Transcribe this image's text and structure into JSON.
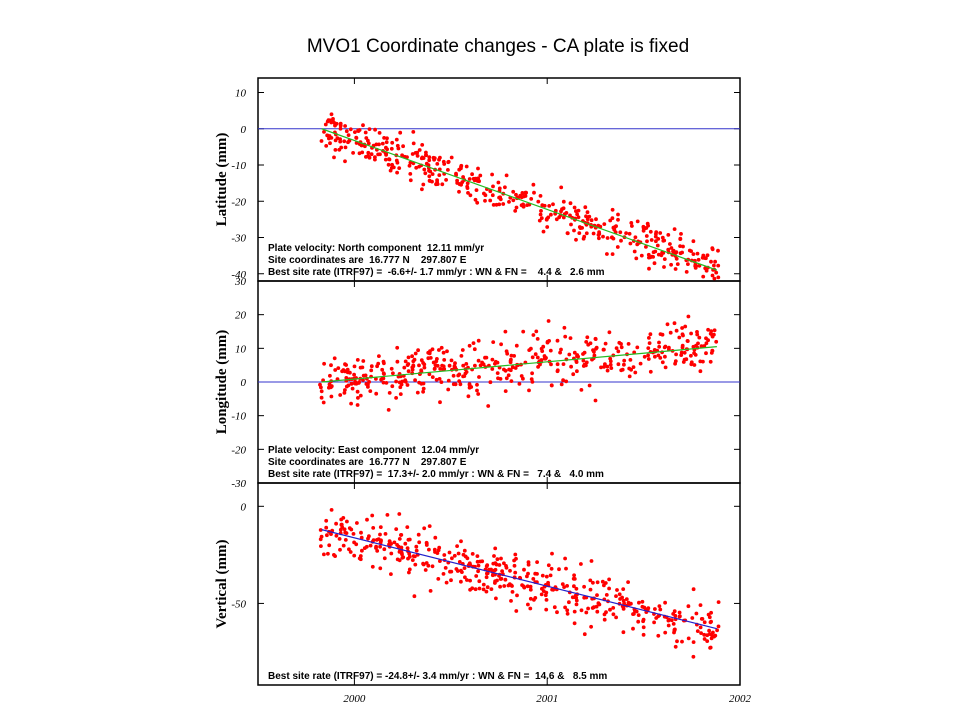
{
  "title": "MVO1 Coordinate changes - CA plate is fixed",
  "colors": {
    "points": "#ff0000",
    "zero_line": "#3333cc",
    "trend_green": "#22bb22",
    "trend_blue": "#2222cc",
    "frame": "#000000"
  },
  "x_axis": {
    "range": [
      1999.5,
      2002.0
    ],
    "tick_labels": [
      "2000",
      "2001",
      "2002"
    ],
    "ticks": [
      2000,
      2001,
      2002
    ]
  },
  "chart_data": [
    {
      "type": "scatter",
      "id": "latitude",
      "ylabel": "Latitude (mm)",
      "ylim": [
        -42,
        14
      ],
      "y_ticks": [
        10,
        0,
        -10,
        -20,
        -30,
        -40
      ],
      "y_tick_labels": [
        "10",
        "0",
        "-10",
        "-20",
        "-30",
        "-40"
      ],
      "zero_line": true,
      "trend": {
        "x": [
          1999.83,
          2001.88
        ],
        "y": [
          0,
          -39
        ],
        "color": "green"
      },
      "noise": 5,
      "n_points": 470,
      "x_span": [
        1999.82,
        2001.89
      ],
      "annotations": [
        "Plate velocity: North component  12.11 mm/yr",
        "Site coordinates are  16.777 N    297.807 E",
        "Best site rate (ITRF97) =  -6.6+/- 1.7 mm/yr : WN & FN =    4.4 &   2.6 mm"
      ]
    },
    {
      "type": "scatter",
      "id": "longitude",
      "ylabel": "Longitude (mm)",
      "ylim": [
        -30,
        30
      ],
      "y_ticks": [
        30,
        20,
        10,
        0,
        -10,
        -20,
        -30
      ],
      "y_tick_labels": [
        "30",
        "20",
        "10",
        "0",
        "-10",
        "-20",
        "-30"
      ],
      "zero_line": true,
      "trend": {
        "x": [
          1999.83,
          2001.88
        ],
        "y": [
          0,
          10.5
        ],
        "color": "green"
      },
      "noise": 7,
      "n_points": 470,
      "x_span": [
        1999.82,
        2001.89
      ],
      "annotations": [
        "Plate velocity: East component  12.04 mm/yr",
        "Site coordinates are  16.777 N    297.807 E",
        "Best site rate (ITRF97) =  17.3+/- 2.0 mm/yr : WN & FN =   7.4 &   4.0 mm"
      ]
    },
    {
      "type": "scatter",
      "id": "vertical",
      "ylabel": "Vertical (mm)",
      "ylim": [
        -92,
        12
      ],
      "y_ticks": [
        0,
        -50
      ],
      "y_tick_labels": [
        "0",
        "-50"
      ],
      "zero_line": false,
      "trend": {
        "x": [
          1999.83,
          2001.88
        ],
        "y": [
          -12,
          -63
        ],
        "color": "blue"
      },
      "noise": 12,
      "n_points": 470,
      "x_span": [
        1999.82,
        2001.89
      ],
      "annotations": [
        "Best site rate (ITRF97) = -24.8+/- 3.4 mm/yr : WN & FN =  14.6 &   8.5 mm"
      ]
    }
  ]
}
